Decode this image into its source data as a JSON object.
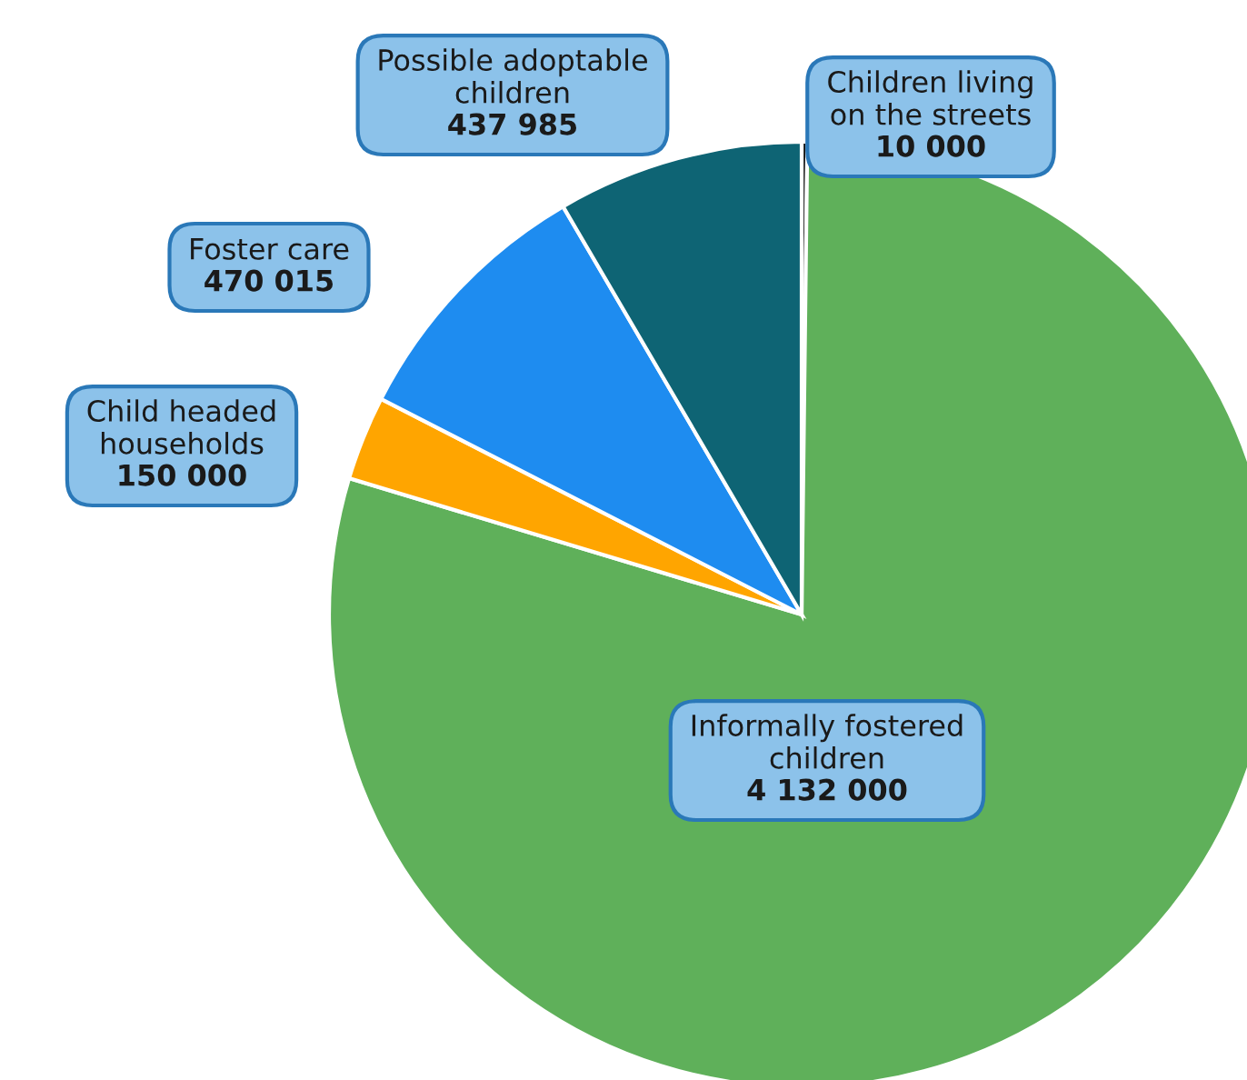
{
  "chart_data": {
    "type": "pie",
    "categories": [
      "Children living\non the streets",
      "Informally fostered\nchildren",
      "Child headed\nhouseholds",
      "Foster care",
      "Possible adoptable\nchildren"
    ],
    "values": [
      10000,
      4132000,
      150000,
      470015,
      437985
    ],
    "value_labels": [
      "10 000",
      "4 132 000",
      "150 000",
      "470 015",
      "437 985"
    ],
    "colors": [
      "#111111",
      "#5fb05a",
      "#ffa500",
      "#1e8cf0",
      "#0e6474"
    ],
    "legend": false
  }
}
